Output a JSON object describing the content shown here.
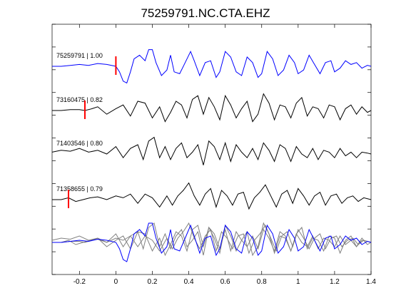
{
  "chart_data": {
    "type": "line",
    "title": "75259791.NC.CTA.EHZ",
    "xlabel": "",
    "ylabel": "",
    "xlim": [
      -0.35,
      1.4
    ],
    "xticks": [
      -0.2,
      0,
      0.2,
      0.4,
      0.6,
      0.8,
      1,
      1.2,
      1.4
    ],
    "xtick_labels": [
      "-0.2",
      "0",
      "0.2",
      "0.4",
      "0.6",
      "0.8",
      "1",
      "1.2",
      "1.4"
    ],
    "grid": false,
    "legend": "none",
    "colors": {
      "template": "#0000ff",
      "match": "#000000",
      "overlay_match": "#808080",
      "pick": "#ff0000"
    },
    "series": [
      {
        "name": "75259791 | 1.00",
        "color": "#0000ff",
        "pick_time": 0.0,
        "x": [
          -0.35,
          -0.3,
          -0.25,
          -0.2,
          -0.15,
          -0.1,
          -0.05,
          0,
          0.02,
          0.04,
          0.06,
          0.08,
          0.1,
          0.13,
          0.16,
          0.18,
          0.2,
          0.22,
          0.25,
          0.28,
          0.3,
          0.32,
          0.35,
          0.38,
          0.41,
          0.43,
          0.46,
          0.49,
          0.52,
          0.55,
          0.57,
          0.6,
          0.63,
          0.66,
          0.69,
          0.72,
          0.75,
          0.78,
          0.8,
          0.83,
          0.86,
          0.89,
          0.92,
          0.95,
          0.98,
          1.0,
          1.03,
          1.06,
          1.09,
          1.12,
          1.15,
          1.18,
          1.2,
          1.23,
          1.26,
          1.29,
          1.32,
          1.35,
          1.38,
          1.4
        ],
        "y": [
          0,
          0,
          0.05,
          0.1,
          0.05,
          0.15,
          0.1,
          0,
          -0.3,
          -0.8,
          -0.9,
          -0.3,
          0.4,
          0.6,
          0.3,
          0.9,
          0.9,
          0.2,
          -0.5,
          -0.2,
          0.6,
          -0.3,
          -0.4,
          0.2,
          0.8,
          0.3,
          -0.5,
          0.2,
          0.3,
          -0.6,
          -0.3,
          0.8,
          0.5,
          -0.3,
          -0.5,
          0.5,
          0.2,
          -0.6,
          -0.4,
          0.8,
          0.4,
          -0.5,
          -0.2,
          0.6,
          0.2,
          -0.4,
          -0.2,
          0.6,
          0.1,
          -0.4,
          0.2,
          0.3,
          -0.3,
          -0.1,
          0.3,
          0.1,
          0.2,
          -0.1,
          0.05,
          0
        ]
      },
      {
        "name": "73160475 | 0.82",
        "color": "#000000",
        "pick_time": -0.17,
        "x": [
          -0.35,
          -0.3,
          -0.25,
          -0.2,
          -0.17,
          -0.13,
          -0.1,
          -0.05,
          0,
          0.04,
          0.08,
          0.12,
          0.16,
          0.2,
          0.24,
          0.27,
          0.3,
          0.33,
          0.36,
          0.39,
          0.42,
          0.45,
          0.48,
          0.51,
          0.54,
          0.57,
          0.6,
          0.63,
          0.66,
          0.69,
          0.72,
          0.75,
          0.78,
          0.81,
          0.84,
          0.87,
          0.9,
          0.93,
          0.96,
          0.99,
          1.02,
          1.05,
          1.08,
          1.11,
          1.14,
          1.17,
          1.2,
          1.23,
          1.26,
          1.29,
          1.32,
          1.35,
          1.38,
          1.4
        ],
        "y": [
          0,
          0,
          0.05,
          0.05,
          0,
          0.1,
          0.2,
          -0.2,
          0.1,
          0.3,
          -0.3,
          0.5,
          0.4,
          -0.4,
          0.2,
          -0.6,
          -0.1,
          0.5,
          0.3,
          -0.4,
          0.6,
          0.8,
          -0.2,
          0.7,
          0.2,
          -0.5,
          0.8,
          0.3,
          -0.4,
          0.1,
          0.5,
          -0.6,
          -0.2,
          0.9,
          0.4,
          -0.5,
          0.3,
          0.2,
          -0.4,
          0.4,
          0.7,
          -0.3,
          0.2,
          0.1,
          -0.4,
          0.3,
          0.2,
          -0.5,
          0.1,
          0.3,
          -0.2,
          0.2,
          -0.1,
          0
        ]
      },
      {
        "name": "71403546 | 0.80",
        "color": "#000000",
        "pick_time": null,
        "x": [
          -0.35,
          -0.3,
          -0.25,
          -0.2,
          -0.15,
          -0.1,
          -0.05,
          0,
          0.04,
          0.08,
          0.12,
          0.15,
          0.18,
          0.21,
          0.24,
          0.27,
          0.3,
          0.33,
          0.36,
          0.39,
          0.42,
          0.45,
          0.48,
          0.51,
          0.54,
          0.57,
          0.6,
          0.63,
          0.66,
          0.69,
          0.72,
          0.75,
          0.78,
          0.81,
          0.84,
          0.87,
          0.9,
          0.93,
          0.96,
          0.99,
          1.02,
          1.05,
          1.08,
          1.11,
          1.14,
          1.17,
          1.2,
          1.23,
          1.26,
          1.29,
          1.32,
          1.35,
          1.38,
          1.4
        ],
        "y": [
          0.1,
          0.2,
          0.15,
          0.3,
          0.1,
          0.2,
          0,
          0.4,
          -0.2,
          0.3,
          0.5,
          -0.3,
          0.7,
          0.9,
          -0.2,
          0.4,
          -0.3,
          0.3,
          0.6,
          -0.2,
          0.1,
          0.5,
          -0.6,
          0.7,
          0.4,
          -0.3,
          0.6,
          -0.4,
          0.5,
          0.1,
          -0.2,
          0.3,
          -0.3,
          0.6,
          0.2,
          -0.4,
          0.5,
          0.3,
          -0.4,
          0.4,
          0,
          -0.2,
          0.3,
          -0.3,
          0.2,
          0.1,
          -0.2,
          0.3,
          -0.1,
          0.1,
          -0.2,
          0.1,
          0.05,
          0
        ]
      },
      {
        "name": "71358655 | 0.79",
        "color": "#000000",
        "pick_time": -0.26,
        "x": [
          -0.35,
          -0.3,
          -0.26,
          -0.22,
          -0.18,
          -0.14,
          -0.1,
          -0.05,
          0,
          0.04,
          0.08,
          0.12,
          0.16,
          0.2,
          0.24,
          0.28,
          0.31,
          0.34,
          0.37,
          0.4,
          0.43,
          0.46,
          0.49,
          0.52,
          0.55,
          0.58,
          0.61,
          0.64,
          0.67,
          0.7,
          0.73,
          0.76,
          0.79,
          0.82,
          0.85,
          0.88,
          0.91,
          0.94,
          0.97,
          1.0,
          1.03,
          1.06,
          1.09,
          1.12,
          1.15,
          1.18,
          1.21,
          1.24,
          1.27,
          1.3,
          1.33,
          1.36,
          1.4
        ],
        "y": [
          0,
          0,
          0.1,
          -0.1,
          0,
          0.1,
          0.15,
          0,
          0.2,
          0.1,
          0.3,
          -0.2,
          0.3,
          0.1,
          -0.4,
          0.2,
          -0.3,
          0.2,
          0.5,
          0.9,
          0.2,
          -0.3,
          0.3,
          0.6,
          -0.4,
          0.5,
          0.2,
          -0.3,
          0.3,
          0.4,
          -0.5,
          0.1,
          0.4,
          0.8,
          0.2,
          -0.4,
          0.3,
          0.5,
          -0.2,
          0.6,
          0.2,
          -0.3,
          0.2,
          0.4,
          -0.3,
          0.2,
          0.3,
          -0.2,
          0.1,
          0.2,
          -0.1,
          0.1,
          0
        ]
      }
    ],
    "overlay": {
      "description_hidden": true,
      "series_names": [
        "75259791 | 1.00",
        "73160475 | 0.82",
        "71403546 | 0.80",
        "71358655 | 0.79"
      ]
    }
  }
}
